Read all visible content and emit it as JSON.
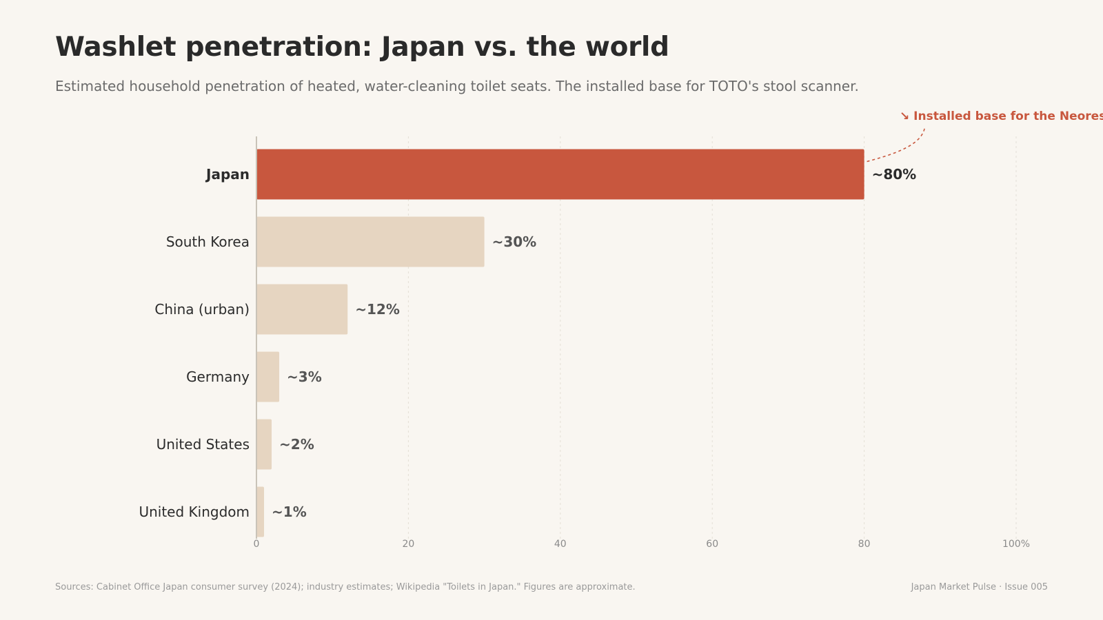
{
  "colors": {
    "highlight": "#c8573e",
    "bar": "#e6d5c1",
    "background": "#f9f6f1",
    "grid": "#e4dfd6",
    "axis": "#c9c3b8"
  },
  "chart_data": {
    "type": "bar",
    "orientation": "horizontal",
    "title": "Washlet penetration: Japan vs. the world",
    "subtitle": "Estimated household penetration of heated, water-cleaning toilet seats. The installed base for TOTO's stool scanner.",
    "categories": [
      "Japan",
      "South Korea",
      "China (urban)",
      "Germany",
      "United States",
      "United Kingdom"
    ],
    "values": [
      80,
      30,
      12,
      3,
      2,
      1
    ],
    "value_labels": [
      "~80%",
      "~30%",
      "~12%",
      "~3%",
      "~2%",
      "~1%"
    ],
    "highlight": "Japan",
    "xlim": [
      0,
      100
    ],
    "x_ticks": [
      0,
      20,
      40,
      60,
      80,
      100
    ],
    "x_tick_labels": [
      "0",
      "20",
      "40",
      "60",
      "80",
      "100%"
    ],
    "grid": true,
    "annotation": {
      "text": "↘ Installed base for the Neorest",
      "target": "Japan"
    }
  },
  "footer": {
    "source": "Sources: Cabinet Office Japan consumer survey (2024); industry estimates; Wikipedia \"Toilets in Japan.\" Figures are approximate.",
    "publication": "Japan Market Pulse · Issue 005"
  }
}
